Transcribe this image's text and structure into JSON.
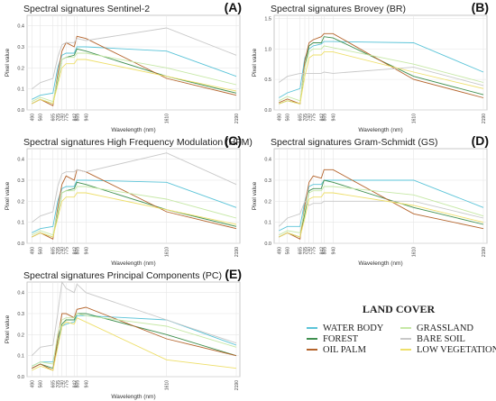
{
  "legend": {
    "title": "LAND COVER",
    "items": [
      {
        "key": "water",
        "label": "WATER BODY",
        "color": "#5bc4d8"
      },
      {
        "key": "grass",
        "label": "GRASSLAND",
        "color": "#c6e8a6"
      },
      {
        "key": "forest",
        "label": "FOREST",
        "color": "#3f8f4f"
      },
      {
        "key": "bare",
        "label": "BARE SOIL",
        "color": "#c8c8c8"
      },
      {
        "key": "oilpalm",
        "label": "OIL PALM",
        "color": "#b4642c"
      },
      {
        "key": "lowveg",
        "label": "LOW VEGETATION",
        "color": "#eedf6a"
      }
    ]
  },
  "chart_data": [
    {
      "id": "A",
      "letter": "(A)",
      "title": "Spectral signatures Sentinel-2",
      "type": "line",
      "xlabel": "Wavelength (nm)",
      "ylabel": "Pixel value",
      "ylim": [
        0,
        0.45
      ],
      "yticks": [
        0,
        0.1,
        0.2,
        0.3,
        0.4
      ],
      "yticklabels": [
        "0.0",
        "0.1",
        "0.2",
        "0.3",
        "0.4"
      ],
      "x": [
        490,
        560,
        665,
        705,
        740,
        775,
        842,
        865,
        940,
        1610,
        2190
      ],
      "xticklabels": [
        "490",
        "560",
        "665",
        "705",
        "740",
        "775",
        "842",
        "865",
        "940",
        "1610",
        "2190"
      ],
      "series": [
        {
          "key": "water",
          "values": [
            0.05,
            0.07,
            0.08,
            0.2,
            0.26,
            0.27,
            0.27,
            0.3,
            0.3,
            0.28,
            0.16
          ]
        },
        {
          "key": "forest",
          "values": [
            0.03,
            0.05,
            0.03,
            0.14,
            0.24,
            0.25,
            0.26,
            0.29,
            0.28,
            0.16,
            0.08
          ]
        },
        {
          "key": "oilpalm",
          "values": [
            0.03,
            0.05,
            0.02,
            0.17,
            0.28,
            0.32,
            0.3,
            0.35,
            0.34,
            0.15,
            0.07
          ]
        },
        {
          "key": "grass",
          "values": [
            0.04,
            0.06,
            0.04,
            0.15,
            0.24,
            0.25,
            0.25,
            0.27,
            0.27,
            0.2,
            0.12
          ]
        },
        {
          "key": "bare",
          "values": [
            0.1,
            0.13,
            0.15,
            0.25,
            0.31,
            0.32,
            0.32,
            0.34,
            0.33,
            0.39,
            0.26
          ]
        },
        {
          "key": "lowveg",
          "values": [
            0.03,
            0.05,
            0.03,
            0.12,
            0.2,
            0.22,
            0.22,
            0.24,
            0.24,
            0.16,
            0.09
          ]
        }
      ]
    },
    {
      "id": "B",
      "letter": "(B)",
      "title": "Spectral signatures Brovey (BR)",
      "type": "line",
      "xlabel": "Wavelength (nm)",
      "ylabel": "Pixel value",
      "ylim": [
        0,
        1.55
      ],
      "yticks": [
        0,
        0.5,
        1.0,
        1.5
      ],
      "yticklabels": [
        "0.0",
        "0.5",
        "1.0",
        "1.5"
      ],
      "x": [
        490,
        560,
        665,
        705,
        740,
        775,
        842,
        865,
        940,
        1610,
        2190
      ],
      "xticklabels": [
        "490",
        "560",
        "665",
        "705",
        "740",
        "775",
        "842",
        "865",
        "940",
        "1610",
        "2190"
      ],
      "series": [
        {
          "key": "water",
          "values": [
            0.2,
            0.28,
            0.35,
            0.85,
            1.0,
            1.05,
            1.08,
            1.12,
            1.12,
            1.1,
            0.62
          ]
        },
        {
          "key": "forest",
          "values": [
            0.1,
            0.15,
            0.1,
            0.7,
            1.05,
            1.1,
            1.1,
            1.2,
            1.18,
            0.55,
            0.25
          ]
        },
        {
          "key": "oilpalm",
          "values": [
            0.12,
            0.18,
            0.1,
            0.8,
            1.1,
            1.15,
            1.2,
            1.25,
            1.25,
            0.5,
            0.2
          ]
        },
        {
          "key": "grass",
          "values": [
            0.15,
            0.22,
            0.15,
            0.7,
            0.95,
            1.0,
            1.0,
            1.05,
            1.02,
            0.75,
            0.45
          ]
        },
        {
          "key": "bare",
          "values": [
            0.45,
            0.55,
            0.6,
            0.6,
            0.6,
            0.6,
            0.6,
            0.62,
            0.6,
            0.7,
            0.4
          ]
        },
        {
          "key": "lowveg",
          "values": [
            0.1,
            0.15,
            0.1,
            0.55,
            0.85,
            0.9,
            0.9,
            0.95,
            0.95,
            0.62,
            0.35
          ]
        }
      ]
    },
    {
      "id": "C",
      "letter": "(C)",
      "title": "Spectral signatures High Frequency Modulation (HFM)",
      "type": "line",
      "xlabel": "Wavelength (nm)",
      "ylabel": "Pixel value",
      "ylim": [
        0,
        0.45
      ],
      "yticks": [
        0,
        0.1,
        0.2,
        0.3,
        0.4
      ],
      "yticklabels": [
        "0.0",
        "0.1",
        "0.2",
        "0.3",
        "0.4"
      ],
      "x": [
        490,
        560,
        665,
        705,
        740,
        775,
        842,
        865,
        940,
        1610,
        2190
      ],
      "xticklabels": [
        "490",
        "560",
        "665",
        "705",
        "740",
        "775",
        "842",
        "865",
        "940",
        "1610",
        "2190"
      ],
      "series": [
        {
          "key": "water",
          "values": [
            0.05,
            0.07,
            0.08,
            0.2,
            0.26,
            0.27,
            0.27,
            0.3,
            0.3,
            0.29,
            0.17
          ]
        },
        {
          "key": "forest",
          "values": [
            0.03,
            0.05,
            0.03,
            0.14,
            0.24,
            0.25,
            0.26,
            0.29,
            0.28,
            0.16,
            0.08
          ]
        },
        {
          "key": "oilpalm",
          "values": [
            0.03,
            0.05,
            0.02,
            0.17,
            0.28,
            0.32,
            0.3,
            0.35,
            0.34,
            0.15,
            0.07
          ]
        },
        {
          "key": "grass",
          "values": [
            0.04,
            0.06,
            0.04,
            0.15,
            0.24,
            0.25,
            0.25,
            0.27,
            0.27,
            0.21,
            0.12
          ]
        },
        {
          "key": "bare",
          "values": [
            0.1,
            0.13,
            0.15,
            0.27,
            0.33,
            0.34,
            0.34,
            0.35,
            0.34,
            0.43,
            0.28
          ]
        },
        {
          "key": "lowveg",
          "values": [
            0.03,
            0.05,
            0.03,
            0.12,
            0.2,
            0.22,
            0.22,
            0.24,
            0.24,
            0.16,
            0.09
          ]
        }
      ]
    },
    {
      "id": "D",
      "letter": "(D)",
      "title": "Spectral signatures Gram-Schmidt (GS)",
      "type": "line",
      "xlabel": "Wavelength (nm)",
      "ylabel": "Pixel value",
      "ylim": [
        0,
        0.45
      ],
      "yticks": [
        0,
        0.1,
        0.2,
        0.3,
        0.4
      ],
      "yticklabels": [
        "0.0",
        "0.1",
        "0.2",
        "0.3",
        "0.4"
      ],
      "x": [
        490,
        560,
        665,
        705,
        740,
        775,
        842,
        865,
        940,
        1610,
        2190
      ],
      "xticklabels": [
        "490",
        "560",
        "665",
        "705",
        "740",
        "775",
        "842",
        "865",
        "940",
        "1610",
        "2190"
      ],
      "series": [
        {
          "key": "water",
          "values": [
            0.06,
            0.08,
            0.08,
            0.2,
            0.27,
            0.28,
            0.28,
            0.3,
            0.3,
            0.3,
            0.17
          ]
        },
        {
          "key": "forest",
          "values": [
            0.03,
            0.05,
            0.03,
            0.14,
            0.25,
            0.26,
            0.26,
            0.3,
            0.29,
            0.17,
            0.09
          ]
        },
        {
          "key": "oilpalm",
          "values": [
            0.03,
            0.05,
            0.02,
            0.18,
            0.29,
            0.32,
            0.31,
            0.35,
            0.35,
            0.14,
            0.07
          ]
        },
        {
          "key": "grass",
          "values": [
            0.04,
            0.06,
            0.05,
            0.16,
            0.24,
            0.25,
            0.25,
            0.27,
            0.27,
            0.23,
            0.13
          ]
        },
        {
          "key": "bare",
          "values": [
            0.08,
            0.12,
            0.14,
            0.2,
            0.18,
            0.19,
            0.19,
            0.2,
            0.2,
            0.2,
            0.12
          ]
        },
        {
          "key": "lowveg",
          "values": [
            0.03,
            0.05,
            0.03,
            0.12,
            0.21,
            0.22,
            0.22,
            0.24,
            0.24,
            0.18,
            0.1
          ]
        }
      ]
    },
    {
      "id": "E",
      "letter": "(E)",
      "title": "Spectral signatures Principal Components (PC)",
      "type": "line",
      "xlabel": "Wavelength (nm)",
      "ylabel": "Pixel value",
      "ylim": [
        0,
        0.45
      ],
      "yticks": [
        0,
        0.1,
        0.2,
        0.3,
        0.4
      ],
      "yticklabels": [
        "0.0",
        "0.1",
        "0.2",
        "0.3",
        "0.4"
      ],
      "x": [
        490,
        560,
        665,
        705,
        740,
        775,
        842,
        865,
        940,
        1610,
        2190
      ],
      "xticklabels": [
        "490",
        "560",
        "665",
        "705",
        "740",
        "775",
        "842",
        "865",
        "940",
        "1610",
        "2190"
      ],
      "series": [
        {
          "key": "water",
          "values": [
            0.05,
            0.07,
            0.07,
            0.18,
            0.24,
            0.25,
            0.26,
            0.29,
            0.29,
            0.27,
            0.15
          ]
        },
        {
          "key": "forest",
          "values": [
            0.04,
            0.06,
            0.04,
            0.15,
            0.25,
            0.27,
            0.27,
            0.3,
            0.3,
            0.2,
            0.1
          ]
        },
        {
          "key": "oilpalm",
          "values": [
            0.04,
            0.06,
            0.03,
            0.18,
            0.3,
            0.3,
            0.28,
            0.32,
            0.33,
            0.18,
            0.1
          ]
        },
        {
          "key": "grass",
          "values": [
            0.05,
            0.07,
            0.06,
            0.2,
            0.27,
            0.28,
            0.28,
            0.3,
            0.29,
            0.24,
            0.14
          ]
        },
        {
          "key": "bare",
          "values": [
            0.1,
            0.14,
            0.15,
            0.3,
            0.45,
            0.42,
            0.4,
            0.44,
            0.4,
            0.27,
            0.16
          ]
        },
        {
          "key": "lowveg",
          "values": [
            0.03,
            0.05,
            0.03,
            0.14,
            0.24,
            0.26,
            0.25,
            0.28,
            0.26,
            0.08,
            0.04
          ]
        }
      ]
    }
  ]
}
